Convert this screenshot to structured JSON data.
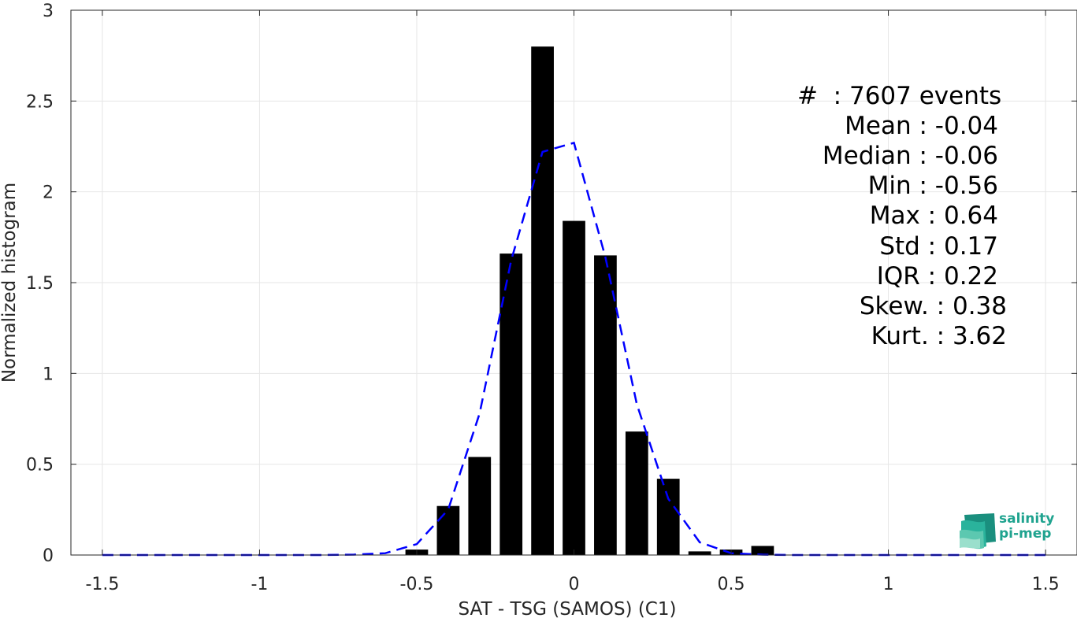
{
  "chart_data": {
    "type": "bar",
    "xlabel": "SAT - TSG (SAMOS) (C1)",
    "ylabel": "Normalized histogram",
    "xlim": [
      -1.6,
      1.6
    ],
    "ylim": [
      0,
      3
    ],
    "xticks": [
      -1.5,
      -1,
      -0.5,
      0,
      0.5,
      1,
      1.5
    ],
    "xtick_labels": [
      "-1.5",
      "-1",
      "-0.5",
      "0",
      "0.5",
      "1",
      "1.5"
    ],
    "yticks": [
      0,
      0.5,
      1,
      1.5,
      2,
      2.5,
      3
    ],
    "ytick_labels": [
      "0",
      "0.5",
      "1",
      "1.5",
      "2",
      "2.5",
      "3"
    ],
    "grid": true,
    "bars": {
      "x": [
        -0.5,
        -0.4,
        -0.3,
        -0.2,
        -0.1,
        0.0,
        0.1,
        0.2,
        0.3,
        0.4,
        0.5,
        0.6
      ],
      "values": [
        0.03,
        0.27,
        0.54,
        1.66,
        2.8,
        1.84,
        1.65,
        0.68,
        0.42,
        0.02,
        0.03,
        0.05
      ],
      "width": 0.072,
      "color": "#000000"
    },
    "fit_curve": {
      "style": "dashed",
      "color": "#0000ff",
      "x": [
        -1.5,
        -1.4,
        -1.3,
        -1.2,
        -1.1,
        -1.0,
        -0.9,
        -0.8,
        -0.7,
        -0.6,
        -0.5,
        -0.4,
        -0.3,
        -0.2,
        -0.1,
        0.0,
        0.1,
        0.2,
        0.3,
        0.4,
        0.5,
        0.6,
        0.7,
        0.8,
        0.9,
        1.0,
        1.1,
        1.2,
        1.3,
        1.4,
        1.5
      ],
      "y": [
        0,
        0,
        0,
        0,
        0,
        0,
        0,
        0,
        0.002,
        0.01,
        0.06,
        0.25,
        0.78,
        1.62,
        2.22,
        2.27,
        1.64,
        0.83,
        0.31,
        0.07,
        0.01,
        0.002,
        0,
        0,
        0,
        0,
        0,
        0,
        0,
        0,
        0
      ]
    }
  },
  "stats": {
    "count": "#  : 7607 events",
    "mean": "Mean : -0.04",
    "median": "Median : -0.06",
    "min": "Min : -0.56",
    "max": "Max : 0.64",
    "std": "Std : 0.17",
    "iqr": "IQR : 0.22",
    "skew": "Skew. : 0.38",
    "kurt": "Kurt. : 3.62"
  },
  "logo": {
    "line1": "salinity",
    "line2": "pi-mep"
  },
  "colors": {
    "bars": "#000000",
    "fit": "#0000ff",
    "grid": "#e6e6e6",
    "axis": "#262626",
    "logo": "#1fa38f"
  }
}
